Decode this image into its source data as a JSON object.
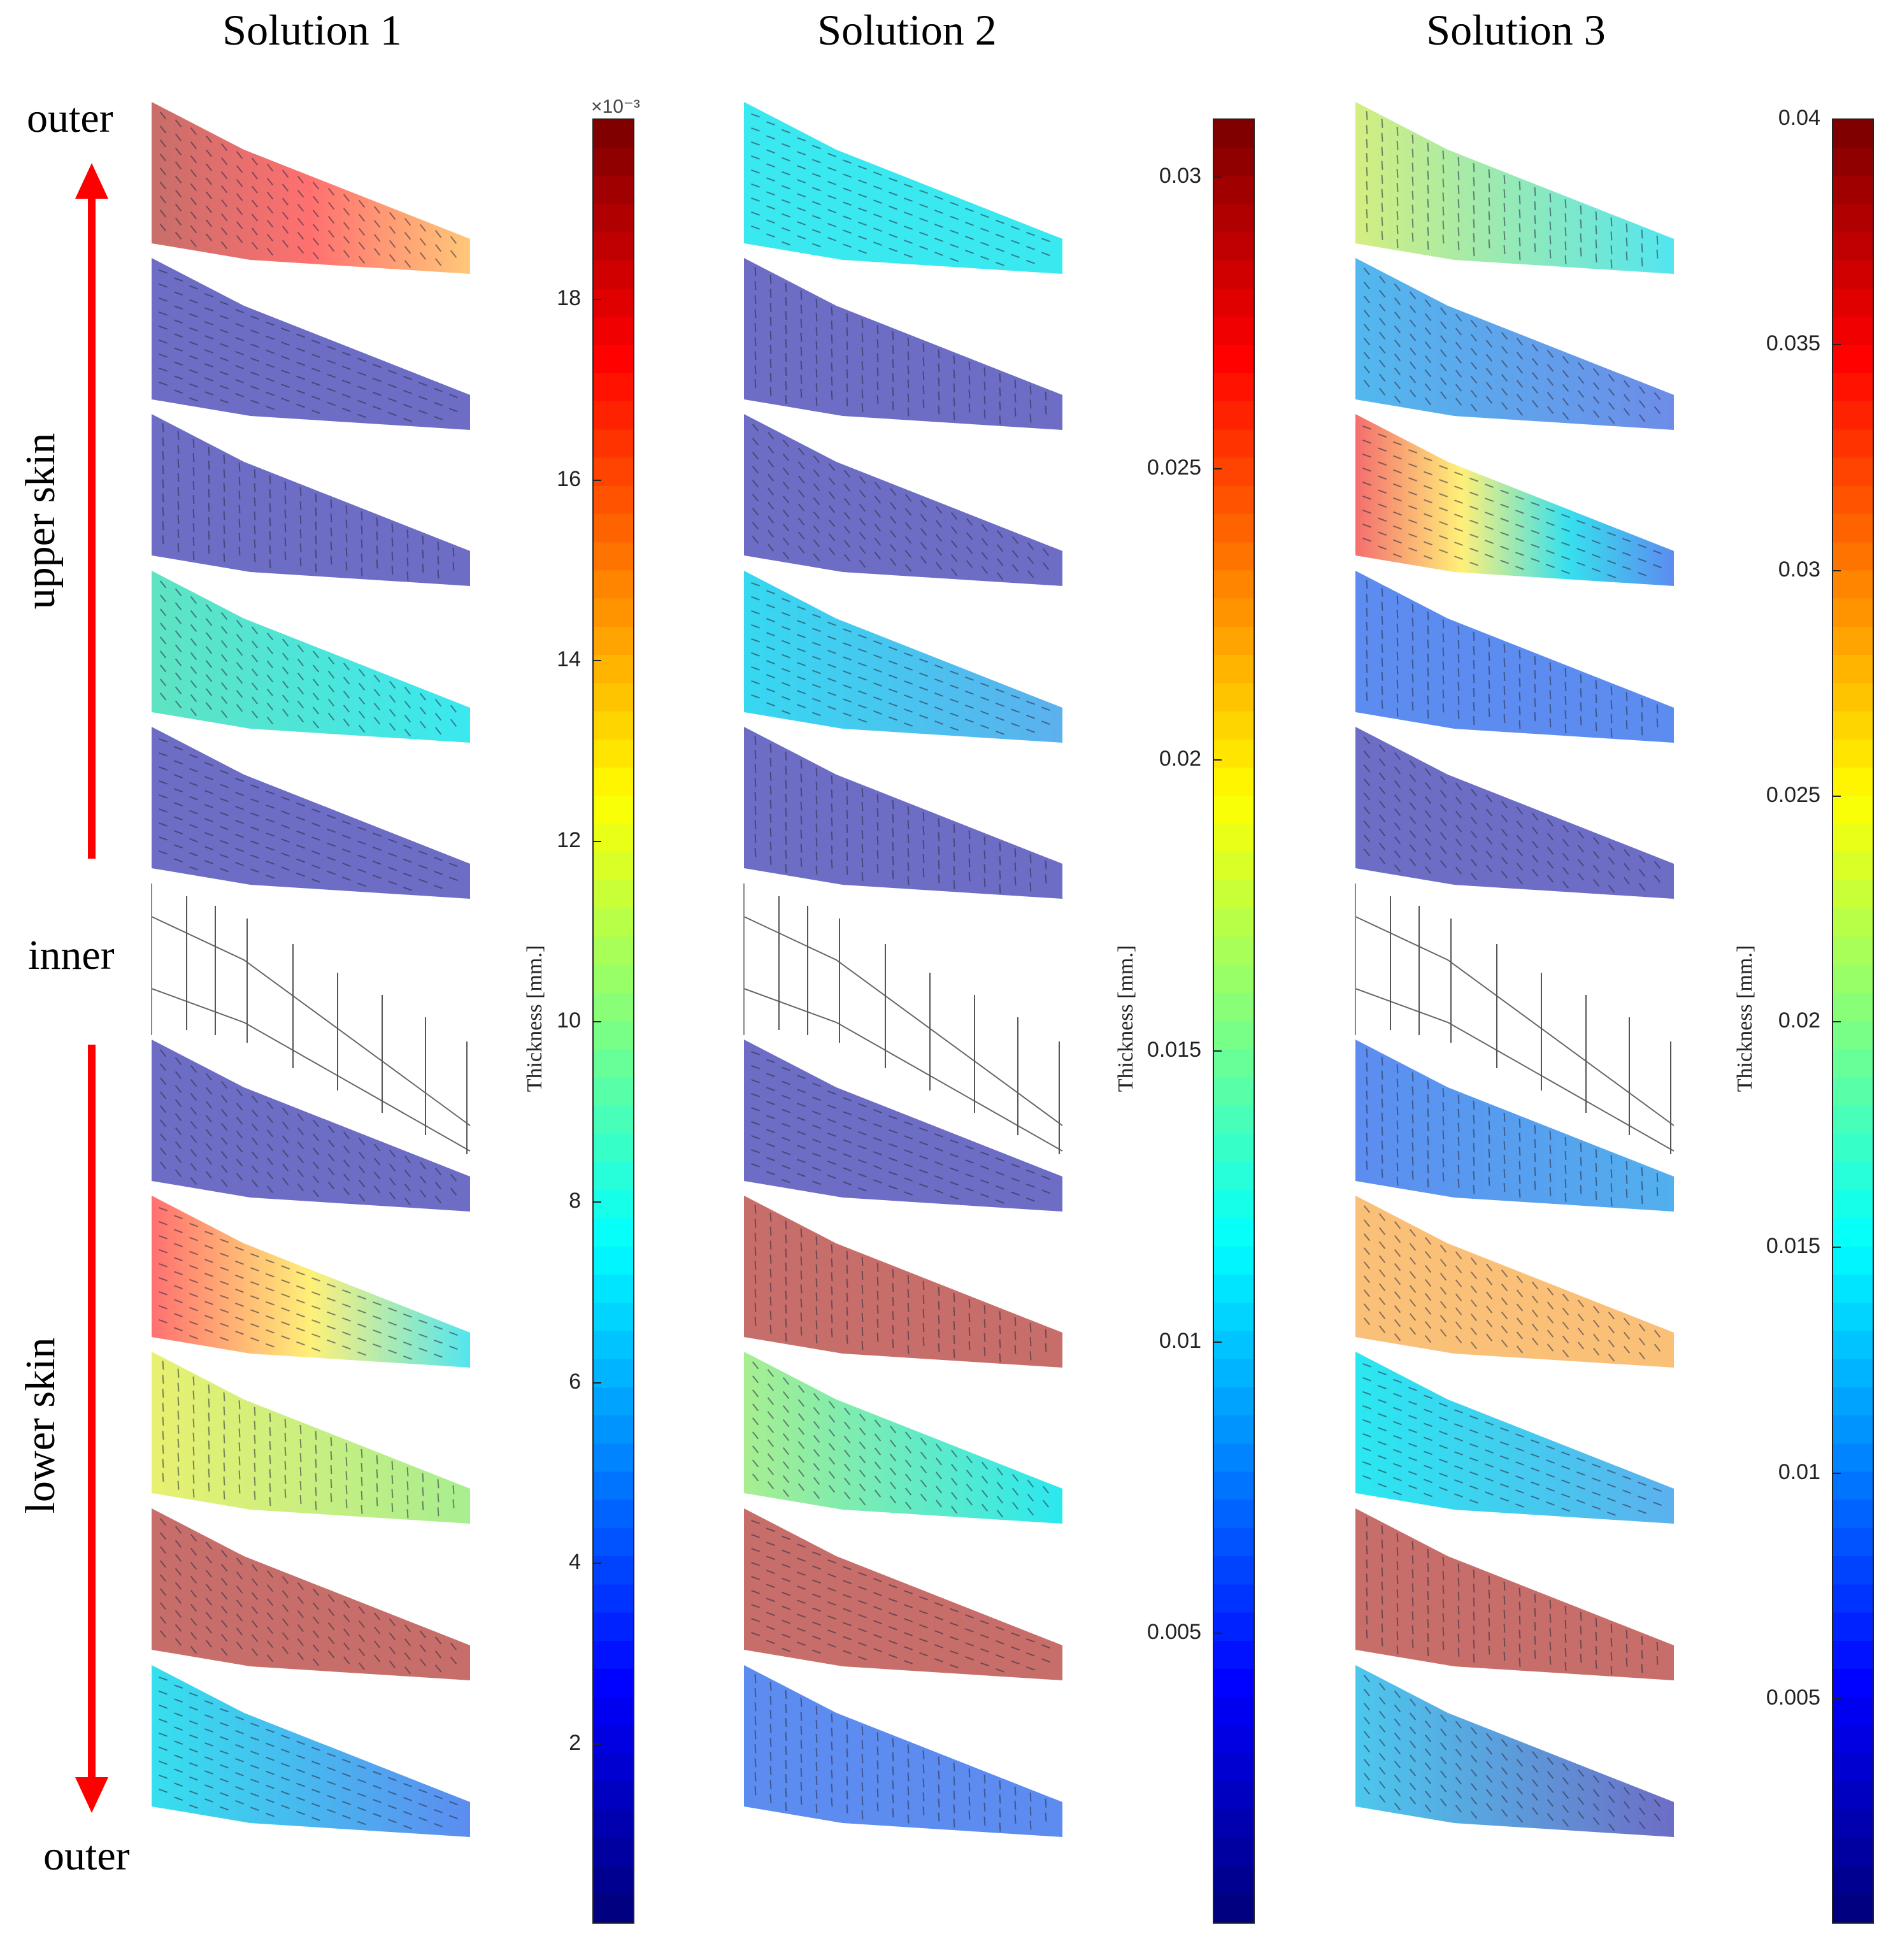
{
  "titles": [
    "Solution 1",
    "Solution 2",
    "Solution 3"
  ],
  "side_labels": {
    "outer_top": "outer",
    "upper_skin": "upper skin",
    "inner": "inner",
    "lower_skin": "lower skin",
    "outer_bottom": "outer"
  },
  "colorbars": [
    {
      "label": "Thickness [mm.]",
      "multiplier": "×10⁻³",
      "min": 0,
      "max": 0.02,
      "ticks": [
        {
          "v": 0.002,
          "t": "2"
        },
        {
          "v": 0.004,
          "t": "4"
        },
        {
          "v": 0.006,
          "t": "6"
        },
        {
          "v": 0.008,
          "t": "8"
        },
        {
          "v": 0.01,
          "t": "10"
        },
        {
          "v": 0.012,
          "t": "12"
        },
        {
          "v": 0.014,
          "t": "14"
        },
        {
          "v": 0.016,
          "t": "16"
        },
        {
          "v": 0.018,
          "t": "18"
        }
      ]
    },
    {
      "label": "Thickness [mm.]",
      "multiplier": "",
      "min": 0,
      "max": 0.031,
      "ticks": [
        {
          "v": 0.005,
          "t": "0.005"
        },
        {
          "v": 0.01,
          "t": "0.01"
        },
        {
          "v": 0.015,
          "t": "0.015"
        },
        {
          "v": 0.02,
          "t": "0.02"
        },
        {
          "v": 0.025,
          "t": "0.025"
        },
        {
          "v": 0.03,
          "t": "0.03"
        }
      ]
    },
    {
      "label": "Thickness [mm.]",
      "multiplier": "",
      "min": 0,
      "max": 0.04,
      "ticks": [
        {
          "v": 0.005,
          "t": "0.005"
        },
        {
          "v": 0.01,
          "t": "0.01"
        },
        {
          "v": 0.015,
          "t": "0.015"
        },
        {
          "v": 0.02,
          "t": "0.02"
        },
        {
          "v": 0.025,
          "t": "0.025"
        },
        {
          "v": 0.03,
          "t": "0.03"
        },
        {
          "v": 0.035,
          "t": "0.035"
        },
        {
          "v": 0.04,
          "t": "0.04"
        }
      ]
    }
  ],
  "layer_order": [
    "outer",
    "upper-1",
    "upper-2",
    "upper-3",
    "upper-4",
    "inner",
    "lower-1",
    "lower-2",
    "lower-3",
    "lower-4",
    "outer"
  ],
  "layer_colors": {
    "solution1": [
      "#c86e6a",
      "#6d6dc6",
      "#6d6dc6",
      "#5fe3c2",
      "#6d6dc6",
      null,
      "#6d6dc6",
      "#f47070",
      "#d8ee70",
      "#c86e6a",
      "#52e5f0"
    ],
    "solution2": [
      "#3ae8f0",
      "#6d6dc6",
      "#6d6dc6",
      "#4cc8ee",
      "#6d6dc6",
      null,
      "#6d6dc6",
      "#c86e6a",
      "#a8ee90",
      "#c86e6a",
      "#5c8cf0"
    ],
    "solution3": [
      "#d4ee80",
      "#52b8ee",
      "#f46e6e",
      "#5c8cf0",
      "#6d6dc6",
      null,
      "#5c8cf0",
      "#fbc078",
      "#36e0ee",
      "#c86e6a",
      "#4cc8ee"
    ]
  },
  "layer_gradients": {
    "solution1": [
      [
        "#c86e6a",
        "#ff7070",
        "#ffc878"
      ],
      null,
      null,
      [
        "#5fe3c2",
        "#3ae8f0"
      ],
      null,
      null,
      null,
      [
        "#ff7070",
        "#fff078",
        "#52e5f0"
      ],
      [
        "#e8f070",
        "#a8ee90"
      ],
      null,
      [
        "#36e0ee",
        "#5c8cf0"
      ]
    ],
    "solution2": [
      null,
      null,
      null,
      [
        "#36d8f0",
        "#5cb0ee"
      ],
      null,
      null,
      null,
      null,
      [
        "#a8ee90",
        "#2ae8f0"
      ],
      null,
      null
    ],
    "solution3": [
      [
        "#d4ee80",
        "#52e5f0"
      ],
      [
        "#52b8ee",
        "#6d8ce8"
      ],
      [
        "#f46e6e",
        "#fff078",
        "#36e0ee",
        "#5c8cf0"
      ],
      null,
      null,
      null,
      [
        "#5c8cf0",
        "#52b0ee"
      ],
      null,
      [
        "#2ae8f0",
        "#5cb0ee"
      ],
      null,
      [
        "#4cc8ee",
        "#6d6dc6"
      ]
    ]
  }
}
